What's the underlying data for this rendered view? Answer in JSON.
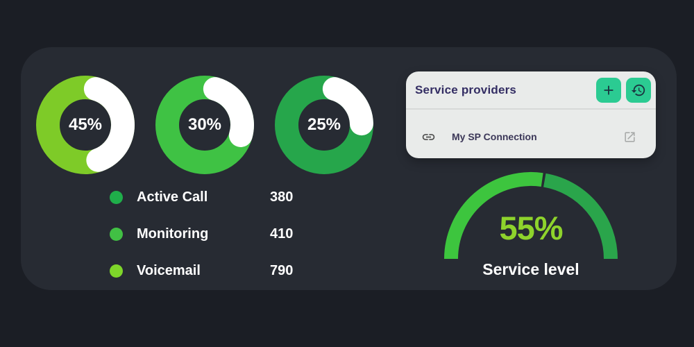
{
  "colors": {
    "page_bg": "#1b1e25",
    "panel_bg": "#272b33",
    "card_bg": "#e9ebea",
    "card_title": "#332d63",
    "card_divider": "#d7d9d8",
    "action_button_bg": "#2bcb92",
    "action_icon": "#1b3440",
    "link_icon": "#4d4d4d",
    "external_icon": "#a8aaa9",
    "text_white": "#ffffff"
  },
  "donuts": [
    {
      "label": "45%",
      "percent": 45,
      "color": "#7ecb28",
      "arc_color": "#ffffff"
    },
    {
      "label": "30%",
      "percent": 30,
      "color": "#3fc244",
      "arc_color": "#ffffff"
    },
    {
      "label": "25%",
      "percent": 25,
      "color": "#26a64b",
      "arc_color": "#ffffff"
    }
  ],
  "legend": [
    {
      "label": "Active Call",
      "value": "380",
      "dot_color": "#1fae4a"
    },
    {
      "label": "Monitoring",
      "value": "410",
      "dot_color": "#41c044"
    },
    {
      "label": "Voicemail",
      "value": "790",
      "dot_color": "#7ed62a"
    }
  ],
  "service_card": {
    "title": "Service providers",
    "buttons": [
      {
        "icon": "plus-icon"
      },
      {
        "icon": "history-icon"
      }
    ],
    "row": {
      "icon": "link-icon",
      "label": "My SP Connection",
      "action_icon": "external-link-icon"
    }
  },
  "gauge": {
    "value_label": "55%",
    "percent": 55,
    "caption": "Service level",
    "left_color": "#3dc53e",
    "right_color": "#2aa54b",
    "value_color": "#8ed32c"
  },
  "chart_data": [
    {
      "type": "pie",
      "subtype": "donut-ring",
      "label": "45%",
      "value_pct": 45,
      "remainder_pct": 55,
      "arc_color": "#ffffff",
      "ring_color": "#7ecb28"
    },
    {
      "type": "pie",
      "subtype": "donut-ring",
      "label": "30%",
      "value_pct": 30,
      "remainder_pct": 70,
      "arc_color": "#ffffff",
      "ring_color": "#3fc244"
    },
    {
      "type": "pie",
      "subtype": "donut-ring",
      "label": "25%",
      "value_pct": 25,
      "remainder_pct": 75,
      "arc_color": "#ffffff",
      "ring_color": "#26a64b"
    },
    {
      "type": "table",
      "title": "Call legend",
      "categories": [
        "Active Call",
        "Monitoring",
        "Voicemail"
      ],
      "values": [
        380,
        410,
        790
      ]
    },
    {
      "type": "pie",
      "subtype": "half-gauge",
      "title": "Service level",
      "value_pct": 55,
      "range": [
        0,
        100
      ]
    }
  ]
}
